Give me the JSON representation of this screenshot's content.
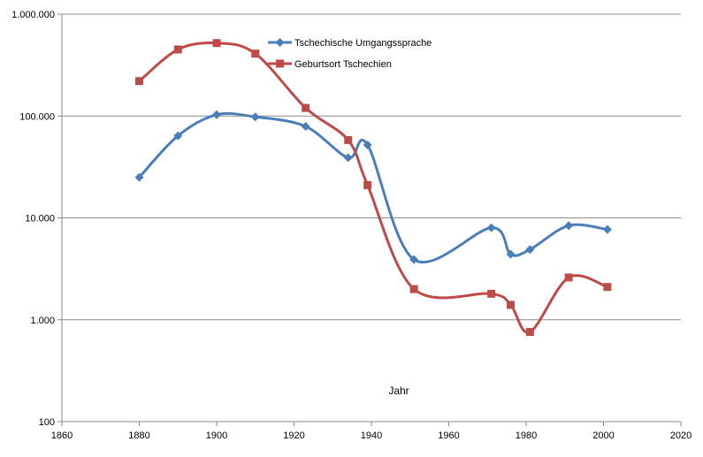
{
  "chart_data": {
    "type": "line",
    "title": "",
    "xlabel": "Jahr",
    "ylabel": "",
    "x_scale": "linear",
    "y_scale": "log",
    "xlim": [
      1860,
      2020
    ],
    "ylim": [
      100,
      1000000
    ],
    "x_ticks": [
      "1860",
      "1880",
      "1900",
      "1920",
      "1940",
      "1960",
      "1980",
      "2000",
      "2020"
    ],
    "y_ticks": [
      {
        "value": 100,
        "label": "100"
      },
      {
        "value": 1000,
        "label": "1.000"
      },
      {
        "value": 10000,
        "label": "10.000"
      },
      {
        "value": 100000,
        "label": "100.000"
      },
      {
        "value": 1000000,
        "label": "1.000.000"
      }
    ],
    "grid": "horizontal",
    "legend_position": "top-center",
    "series": [
      {
        "name": "Tschechische Umgangssprache",
        "color": "#4a7ebb",
        "marker": "diamond",
        "points": [
          [
            1880,
            25000
          ],
          [
            1890,
            64000
          ],
          [
            1900,
            103000
          ],
          [
            1910,
            98000
          ],
          [
            1923,
            79000
          ],
          [
            1934,
            39000
          ],
          [
            1939,
            52000
          ],
          [
            1951,
            3900
          ],
          [
            1971,
            8000
          ],
          [
            1976,
            4400
          ],
          [
            1981,
            4900
          ],
          [
            1991,
            8400
          ],
          [
            2001,
            7700
          ]
        ]
      },
      {
        "name": "Geburtsort Tschechien",
        "color": "#be4b48",
        "marker": "square",
        "points": [
          [
            1880,
            220000
          ],
          [
            1890,
            450000
          ],
          [
            1900,
            520000
          ],
          [
            1910,
            410000
          ],
          [
            1923,
            120000
          ],
          [
            1934,
            58000
          ],
          [
            1939,
            21000
          ],
          [
            1951,
            2000
          ],
          [
            1971,
            1800
          ],
          [
            1976,
            1400
          ],
          [
            1981,
            760
          ],
          [
            1991,
            2600
          ],
          [
            2001,
            2100
          ]
        ]
      }
    ]
  }
}
